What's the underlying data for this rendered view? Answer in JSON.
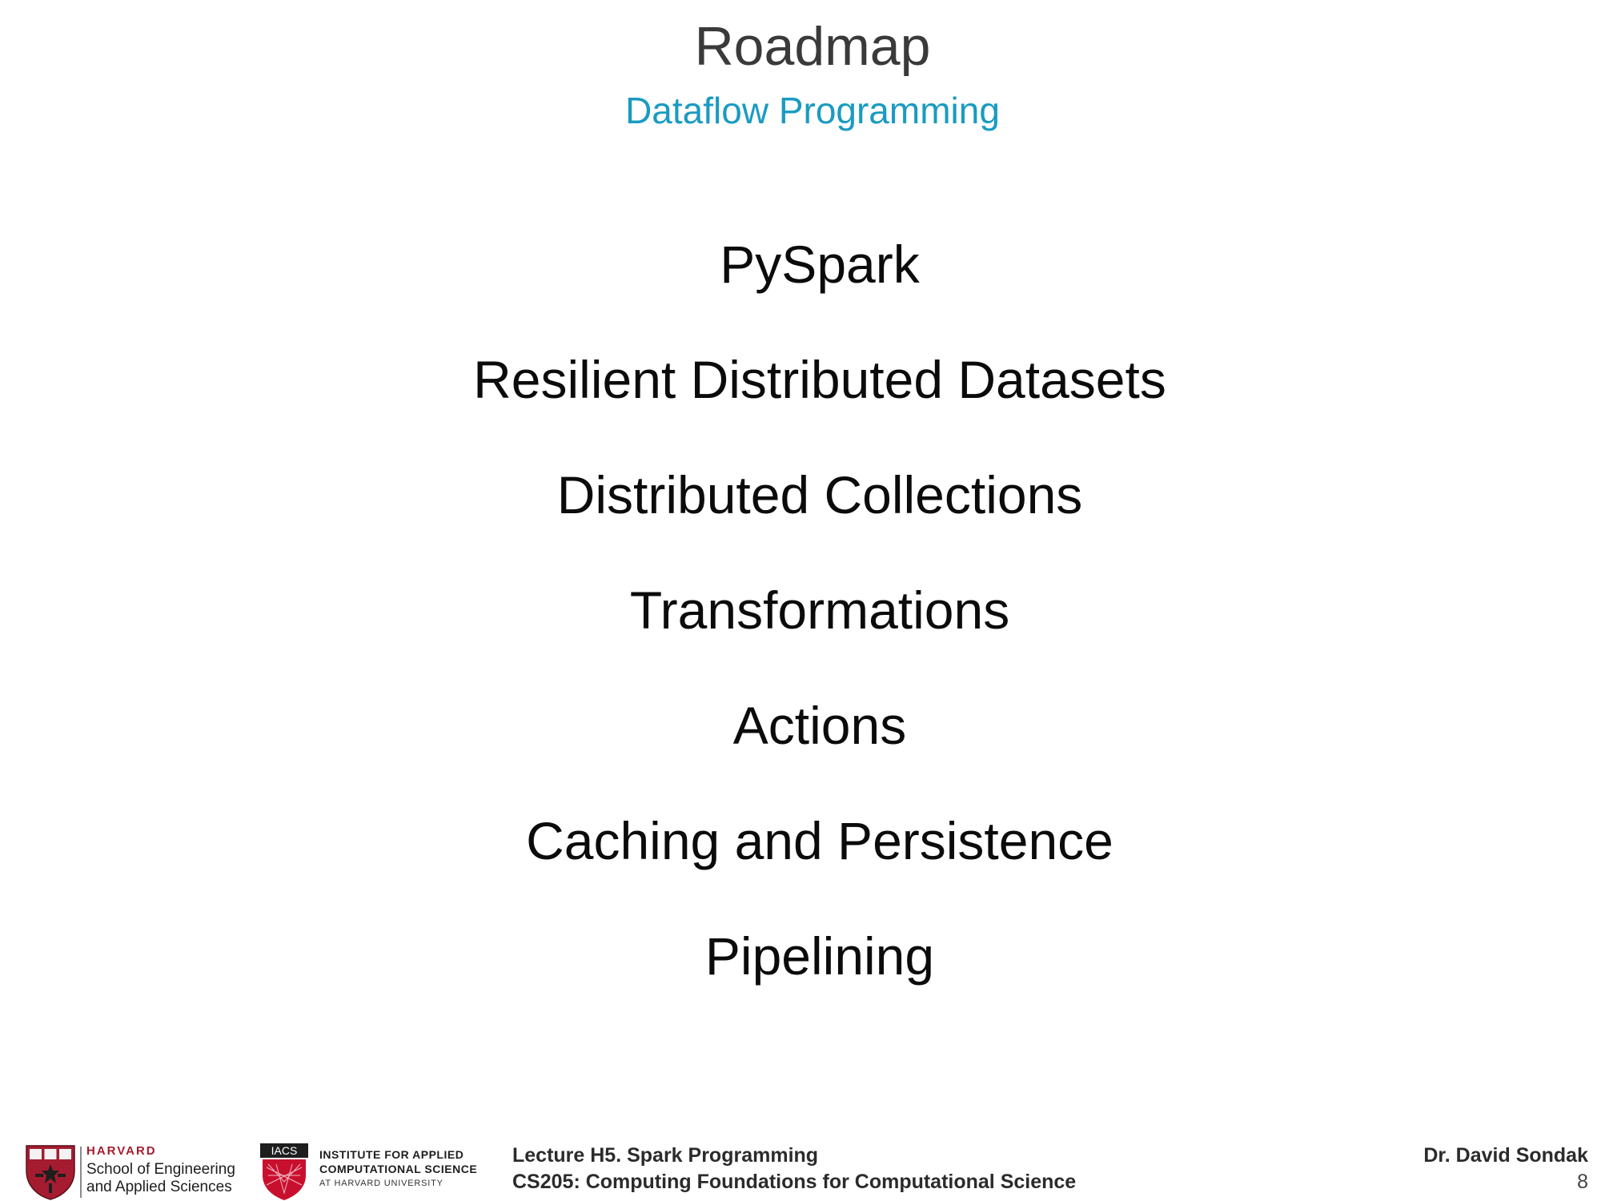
{
  "slide": {
    "title": "Roadmap",
    "subtitle": "Dataflow Programming",
    "items": [
      "PySpark",
      "Resilient Distributed Datasets",
      "Distributed Collections",
      "Transformations",
      "Actions",
      "Caching and Persistence",
      "Pipelining"
    ]
  },
  "footer": {
    "harvard_logo": {
      "word": "HARVARD",
      "school_line1": "School of Engineering",
      "school_line2": "and Applied Sciences"
    },
    "iacs_logo": {
      "badge": "IACS",
      "line1": "INSTITUTE FOR APPLIED",
      "line2": "COMPUTATIONAL SCIENCE",
      "line3": "AT HARVARD UNIVERSITY"
    },
    "lecture_line1": "Lecture H5. Spark Programming",
    "lecture_line2": "CS205: Computing Foundations for Computational Science",
    "author": "Dr. David Sondak",
    "page_number": "8"
  },
  "colors": {
    "title": "#3a3a3a",
    "subtitle": "#1a9bc1",
    "harvard_crimson": "#a51c30"
  }
}
